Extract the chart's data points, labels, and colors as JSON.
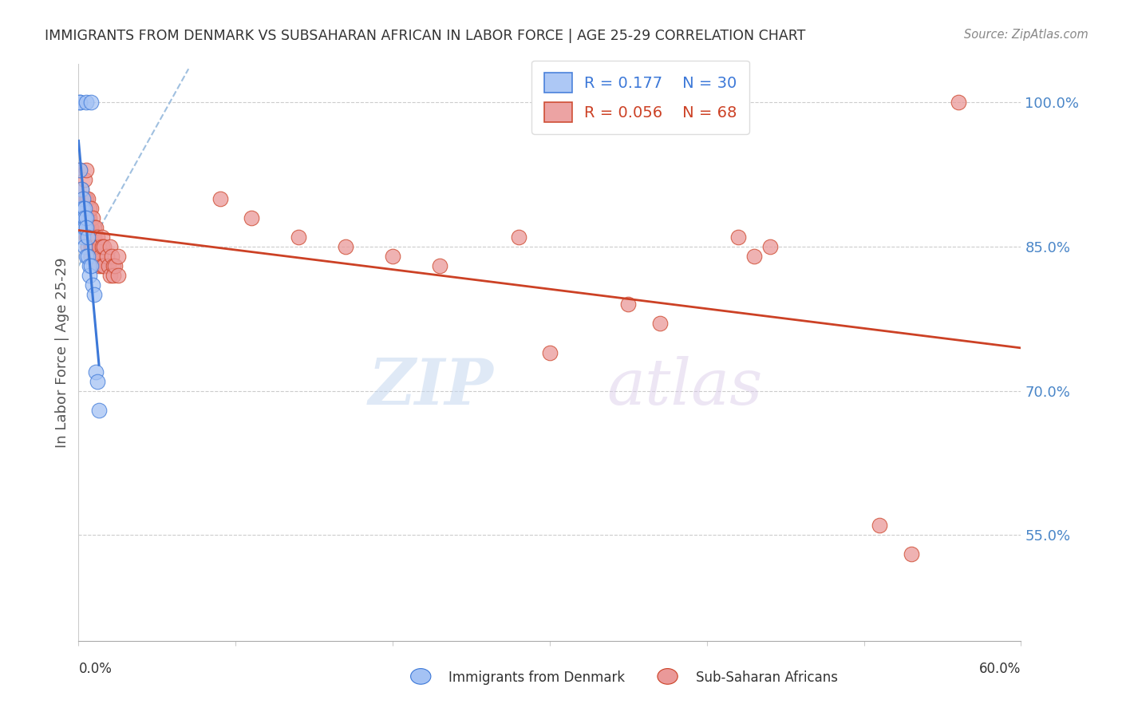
{
  "title": "IMMIGRANTS FROM DENMARK VS SUBSAHARAN AFRICAN IN LABOR FORCE | AGE 25-29 CORRELATION CHART",
  "source": "Source: ZipAtlas.com",
  "ylabel": "In Labor Force | Age 25-29",
  "legend_denmark_R": "0.177",
  "legend_denmark_N": "30",
  "legend_africa_R": "0.056",
  "legend_africa_N": "68",
  "denmark_color": "#a4c2f4",
  "africa_color": "#ea9999",
  "denmark_line_color": "#3c78d8",
  "africa_line_color": "#cc4125",
  "dashed_line_color": "#a0c0e0",
  "watermark_zip": "ZIP",
  "watermark_atlas": "atlas",
  "background_color": "#ffffff",
  "xlim": [
    0.0,
    0.6
  ],
  "ylim": [
    44.0,
    104.0
  ],
  "right_ytick_vals": [
    55.0,
    70.0,
    85.0,
    100.0
  ],
  "right_ytick_labels": [
    "55.0%",
    "70.0%",
    "85.0%",
    "100.0%"
  ],
  "denmark_scatter_x": [
    0.001,
    0.001,
    0.005,
    0.008,
    0.001,
    0.002,
    0.002,
    0.002,
    0.003,
    0.003,
    0.003,
    0.003,
    0.003,
    0.004,
    0.004,
    0.004,
    0.004,
    0.005,
    0.005,
    0.005,
    0.006,
    0.006,
    0.007,
    0.007,
    0.008,
    0.009,
    0.01,
    0.011,
    0.012,
    0.013
  ],
  "denmark_scatter_y": [
    100.0,
    100.0,
    100.0,
    100.0,
    93.0,
    91.0,
    89.0,
    88.0,
    90.0,
    89.0,
    88.0,
    87.0,
    86.0,
    89.0,
    88.0,
    87.0,
    85.0,
    88.0,
    87.0,
    84.0,
    86.0,
    84.0,
    83.0,
    82.0,
    83.0,
    81.0,
    80.0,
    72.0,
    71.0,
    68.0
  ],
  "africa_scatter_x": [
    0.001,
    0.002,
    0.003,
    0.003,
    0.004,
    0.004,
    0.004,
    0.005,
    0.005,
    0.005,
    0.005,
    0.005,
    0.006,
    0.006,
    0.006,
    0.006,
    0.007,
    0.007,
    0.007,
    0.008,
    0.008,
    0.008,
    0.008,
    0.008,
    0.009,
    0.009,
    0.009,
    0.01,
    0.01,
    0.01,
    0.011,
    0.011,
    0.012,
    0.012,
    0.013,
    0.013,
    0.014,
    0.015,
    0.015,
    0.015,
    0.016,
    0.016,
    0.018,
    0.019,
    0.02,
    0.02,
    0.021,
    0.022,
    0.022,
    0.023,
    0.025,
    0.025,
    0.09,
    0.11,
    0.14,
    0.17,
    0.2,
    0.23,
    0.28,
    0.3,
    0.35,
    0.37,
    0.42,
    0.43,
    0.44,
    0.51,
    0.53,
    0.56
  ],
  "africa_scatter_y": [
    93.0,
    91.0,
    90.0,
    88.0,
    92.0,
    90.0,
    88.0,
    93.0,
    90.0,
    88.0,
    87.0,
    86.0,
    90.0,
    88.0,
    87.0,
    85.0,
    89.0,
    88.0,
    86.0,
    89.0,
    87.0,
    86.0,
    85.0,
    84.0,
    88.0,
    86.0,
    85.0,
    87.0,
    86.0,
    84.0,
    87.0,
    85.0,
    86.0,
    84.0,
    85.0,
    83.0,
    84.0,
    86.0,
    85.0,
    83.0,
    85.0,
    83.0,
    84.0,
    83.0,
    85.0,
    82.0,
    84.0,
    83.0,
    82.0,
    83.0,
    84.0,
    82.0,
    90.0,
    88.0,
    86.0,
    85.0,
    84.0,
    83.0,
    86.0,
    74.0,
    79.0,
    77.0,
    86.0,
    84.0,
    85.0,
    56.0,
    53.0,
    100.0
  ],
  "dashed_line_x": [
    0.0,
    0.07
  ],
  "dashed_line_y": [
    83.0,
    103.5
  ]
}
